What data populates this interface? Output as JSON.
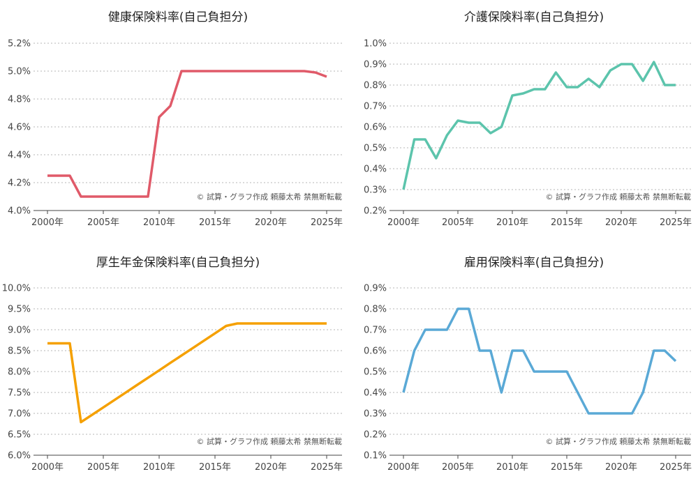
{
  "credit": "© 試算・グラフ作成 頼藤太希 禁無断転載",
  "chart_data": [
    {
      "type": "line",
      "title": "健康保険料率(自己負担分)",
      "color": "#e05a69",
      "x": [
        2000,
        2001,
        2002,
        2003,
        2004,
        2005,
        2006,
        2007,
        2008,
        2009,
        2010,
        2011,
        2012,
        2013,
        2014,
        2015,
        2016,
        2017,
        2018,
        2019,
        2020,
        2021,
        2022,
        2023,
        2024,
        2025
      ],
      "values": [
        4.25,
        4.25,
        4.25,
        4.1,
        4.1,
        4.1,
        4.1,
        4.1,
        4.1,
        4.1,
        4.67,
        4.75,
        5.0,
        5.0,
        5.0,
        5.0,
        5.0,
        5.0,
        5.0,
        5.0,
        5.0,
        5.0,
        5.0,
        5.0,
        4.99,
        4.96
      ],
      "ylim": [
        4.0,
        5.2
      ],
      "yticks": [
        "4.0%",
        "4.2%",
        "4.4%",
        "4.6%",
        "4.8%",
        "5.0%",
        "5.2%"
      ],
      "xticks": [
        "2000年",
        "2005年",
        "2010年",
        "2015年",
        "2020年",
        "2025年"
      ]
    },
    {
      "type": "line",
      "title": "介護保険料率(自己負担分)",
      "color": "#5cc4ac",
      "x": [
        2000,
        2001,
        2002,
        2003,
        2004,
        2005,
        2006,
        2007,
        2008,
        2009,
        2010,
        2011,
        2012,
        2013,
        2014,
        2015,
        2016,
        2017,
        2018,
        2019,
        2020,
        2021,
        2022,
        2023,
        2024,
        2025
      ],
      "values": [
        0.3,
        0.54,
        0.54,
        0.45,
        0.56,
        0.63,
        0.62,
        0.62,
        0.57,
        0.6,
        0.75,
        0.76,
        0.78,
        0.78,
        0.86,
        0.79,
        0.79,
        0.83,
        0.79,
        0.87,
        0.9,
        0.9,
        0.82,
        0.91,
        0.8,
        0.8
      ],
      "ylim": [
        0.2,
        1.0
      ],
      "yticks": [
        "0.2%",
        "0.3%",
        "0.4%",
        "0.5%",
        "0.6%",
        "0.7%",
        "0.8%",
        "0.9%",
        "1.0%"
      ],
      "xticks": [
        "2000年",
        "2005年",
        "2010年",
        "2015年",
        "2020年",
        "2025年"
      ]
    },
    {
      "type": "line",
      "title": "厚生年金保険料率(自己負担分)",
      "color": "#f5a000",
      "x": [
        2000,
        2001,
        2002,
        2003,
        2004,
        2005,
        2006,
        2007,
        2008,
        2009,
        2010,
        2011,
        2012,
        2013,
        2014,
        2015,
        2016,
        2017,
        2018,
        2019,
        2020,
        2021,
        2022,
        2023,
        2024,
        2025
      ],
      "values": [
        8.675,
        8.675,
        8.675,
        6.79,
        6.967,
        7.143,
        7.32,
        7.497,
        7.675,
        7.852,
        8.029,
        8.206,
        8.383,
        8.56,
        8.737,
        8.914,
        9.091,
        9.15,
        9.15,
        9.15,
        9.15,
        9.15,
        9.15,
        9.15,
        9.15,
        9.15
      ],
      "ylim": [
        6.0,
        10.0
      ],
      "yticks": [
        "6.0%",
        "6.5%",
        "7.0%",
        "7.5%",
        "8.0%",
        "8.5%",
        "9.0%",
        "9.5%",
        "10.0%"
      ],
      "xticks": [
        "2000年",
        "2005年",
        "2010年",
        "2015年",
        "2020年",
        "2025年"
      ]
    },
    {
      "type": "line",
      "title": "雇用保険料率(自己負担分)",
      "color": "#5aa9d6",
      "x": [
        2000,
        2001,
        2002,
        2003,
        2004,
        2005,
        2006,
        2007,
        2008,
        2009,
        2010,
        2011,
        2012,
        2013,
        2014,
        2015,
        2016,
        2017,
        2018,
        2019,
        2020,
        2021,
        2022,
        2023,
        2024,
        2025
      ],
      "values": [
        0.4,
        0.6,
        0.7,
        0.7,
        0.7,
        0.8,
        0.8,
        0.6,
        0.6,
        0.4,
        0.6,
        0.6,
        0.5,
        0.5,
        0.5,
        0.5,
        0.4,
        0.3,
        0.3,
        0.3,
        0.3,
        0.3,
        0.4,
        0.6,
        0.6,
        0.55
      ],
      "ylim": [
        0.1,
        0.9
      ],
      "yticks": [
        "0.1%",
        "0.2%",
        "0.3%",
        "0.4%",
        "0.5%",
        "0.6%",
        "0.7%",
        "0.8%",
        "0.9%"
      ],
      "xticks": [
        "2000年",
        "2005年",
        "2010年",
        "2015年",
        "2020年",
        "2025年"
      ]
    }
  ]
}
